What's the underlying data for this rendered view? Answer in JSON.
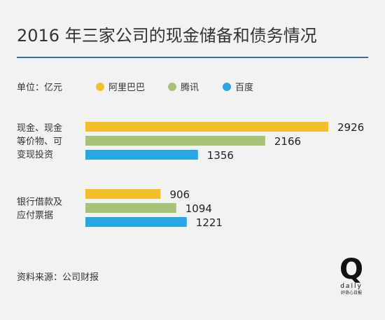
{
  "title": "2016 年三家公司的现金储备和债务情况",
  "unit": "单位：亿元",
  "source": "资料来源：公司财报",
  "logo": {
    "mark": "Q",
    "word": "daily",
    "tagline": "好奇心日报"
  },
  "colors": {
    "background": "#f2f2f2",
    "rule": "#3c6e9c",
    "alibaba": "#f2bf2c",
    "tencent": "#a8c27a",
    "baidu": "#2aa7e2"
  },
  "chart_data": {
    "type": "bar",
    "orientation": "horizontal",
    "title": "2016 年三家公司的现金储备和债务情况",
    "unit": "单位：亿元",
    "legend_position": "top",
    "grid": false,
    "xlim": [
      0,
      2926
    ],
    "categories": [
      [
        "现金、现金",
        "等价物、可",
        "变现投资"
      ],
      [
        "银行借款及",
        "应付票据"
      ]
    ],
    "series": [
      {
        "name": "阿里巴巴",
        "color": "#f2bf2c",
        "values": [
          2926,
          906
        ]
      },
      {
        "name": "腾讯",
        "color": "#a8c27a",
        "values": [
          2166,
          1094
        ]
      },
      {
        "name": "百度",
        "color": "#2aa7e2",
        "values": [
          1356,
          1221
        ]
      }
    ]
  }
}
